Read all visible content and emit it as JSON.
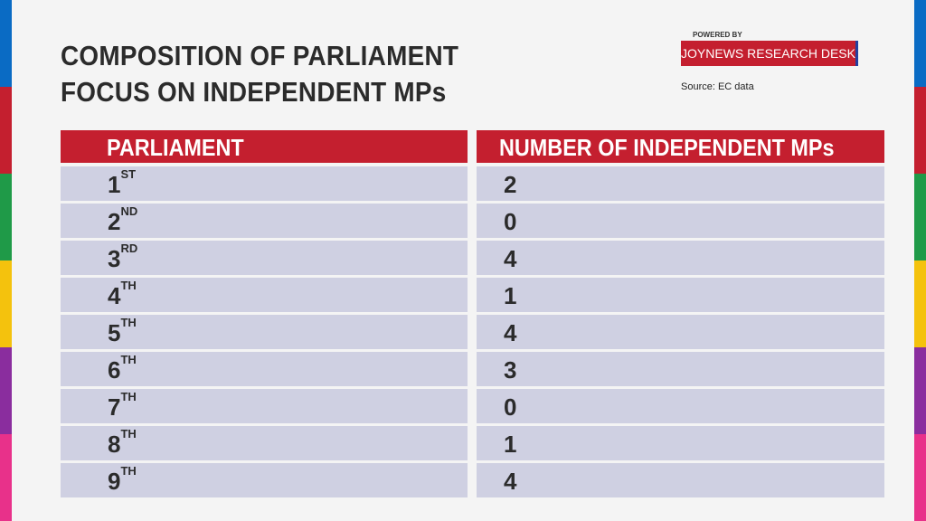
{
  "title": {
    "line1": "COMPOSITION OF PARLIAMENT",
    "line2": "FOCUS ON INDEPENDENT MPs"
  },
  "branding": {
    "powered_by": "POWERED BY",
    "desk": "JOYNEWS RESEARCH DESK",
    "source": "Source: EC data"
  },
  "colors": {
    "header_red": "#c41f2f",
    "row_fill": "#cfd0e2",
    "stripe": [
      "#0a6bc4",
      "#c41f2f",
      "#1f9a48",
      "#f4c20d",
      "#8a2d9e",
      "#e8318a"
    ]
  },
  "chart_data": {
    "type": "table",
    "columns": [
      "PARLIAMENT",
      "NUMBER OF INDEPENDENT MPs"
    ],
    "rows": [
      {
        "num": "1",
        "suffix": "ST",
        "value": "2"
      },
      {
        "num": "2",
        "suffix": "ND",
        "value": "0"
      },
      {
        "num": "3",
        "suffix": "RD",
        "value": "4"
      },
      {
        "num": "4",
        "suffix": "TH",
        "value": "1"
      },
      {
        "num": "5",
        "suffix": "TH",
        "value": "4"
      },
      {
        "num": "6",
        "suffix": "TH",
        "value": "3"
      },
      {
        "num": "7",
        "suffix": "TH",
        "value": "0"
      },
      {
        "num": "8",
        "suffix": "TH",
        "value": "1"
      },
      {
        "num": "9",
        "suffix": "TH",
        "value": "4"
      }
    ]
  }
}
